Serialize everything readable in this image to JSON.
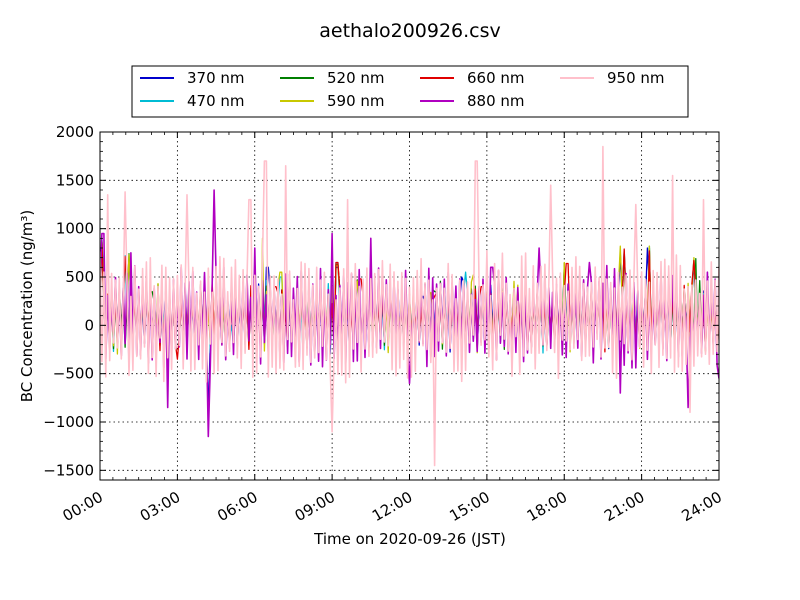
{
  "chart_data": {
    "type": "line",
    "title": "aethalo200926.csv",
    "xlabel": "Time on 2020-09-26 (JST)",
    "ylabel": "BC Concentration (ng/m³)",
    "xlim": [
      0,
      24
    ],
    "ylim": [
      -1600,
      2000
    ],
    "x_unit": "hours",
    "x_ticks": [
      0,
      3,
      6,
      9,
      12,
      15,
      18,
      21,
      24
    ],
    "x_tick_labels": [
      "00:00",
      "03:00",
      "06:00",
      "09:00",
      "12:00",
      "15:00",
      "18:00",
      "21:00",
      "24:00"
    ],
    "y_ticks": [
      -1500,
      -1000,
      -500,
      0,
      500,
      1000,
      1500,
      2000
    ],
    "y_tick_labels": [
      "−1500",
      "−1000",
      "−500",
      "0",
      "500",
      "1000",
      "1500",
      "2000"
    ],
    "grid": true,
    "legend_position": "top",
    "series": [
      {
        "name": "370 nm",
        "color": "#0000cc",
        "peaks": [
          [
            0.05,
            850
          ],
          [
            1.0,
            700
          ],
          [
            4.2,
            -900
          ],
          [
            6.5,
            600
          ],
          [
            9.2,
            600
          ],
          [
            10.0,
            450
          ],
          [
            12.5,
            300
          ],
          [
            14.0,
            500
          ],
          [
            18.0,
            600
          ],
          [
            20.2,
            750
          ],
          [
            21.2,
            800
          ],
          [
            23.0,
            650
          ],
          [
            24.0,
            200
          ]
        ]
      },
      {
        "name": "470 nm",
        "color": "#00bcd4",
        "peaks": [
          [
            0.05,
            900
          ],
          [
            1.0,
            720
          ],
          [
            5.1,
            0
          ],
          [
            7.0,
            500
          ],
          [
            9.2,
            650
          ],
          [
            10.5,
            400
          ],
          [
            12.6,
            320
          ],
          [
            14.2,
            550
          ],
          [
            18.0,
            620
          ],
          [
            20.3,
            780
          ],
          [
            21.3,
            820
          ],
          [
            23.0,
            680
          ],
          [
            24.0,
            220
          ]
        ]
      },
      {
        "name": "520 nm",
        "color": "#007f00",
        "peaks": [
          [
            0.05,
            880
          ],
          [
            1.1,
            740
          ],
          [
            2.0,
            350
          ],
          [
            6.0,
            650
          ],
          [
            9.2,
            630
          ],
          [
            10.0,
            470
          ],
          [
            13.0,
            350
          ],
          [
            15.0,
            450
          ],
          [
            18.0,
            640
          ],
          [
            20.3,
            760
          ],
          [
            21.3,
            800
          ],
          [
            23.1,
            690
          ],
          [
            24.0,
            200
          ]
        ]
      },
      {
        "name": "590 nm",
        "color": "#c8c800",
        "peaks": [
          [
            0.05,
            870
          ],
          [
            1.1,
            730
          ],
          [
            6.3,
            900
          ],
          [
            7.0,
            550
          ],
          [
            9.2,
            620
          ],
          [
            10.0,
            460
          ],
          [
            12.8,
            340
          ],
          [
            14.5,
            520
          ],
          [
            18.0,
            650
          ],
          [
            20.2,
            820
          ],
          [
            21.3,
            820
          ],
          [
            23.0,
            700
          ],
          [
            24.0,
            210
          ]
        ]
      },
      {
        "name": "660 nm",
        "color": "#e00000",
        "peaks": [
          [
            0.05,
            860
          ],
          [
            1.0,
            710
          ],
          [
            3.0,
            -350
          ],
          [
            6.8,
            400
          ],
          [
            9.2,
            650
          ],
          [
            10.1,
            480
          ],
          [
            13.0,
            300
          ],
          [
            14.8,
            400
          ],
          [
            18.1,
            640
          ],
          [
            20.3,
            790
          ],
          [
            21.3,
            770
          ],
          [
            23.0,
            670
          ],
          [
            24.0,
            190
          ]
        ]
      },
      {
        "name": "880 nm",
        "color": "#b000c0",
        "peaks": [
          [
            0.1,
            950
          ],
          [
            1.2,
            750
          ],
          [
            2.6,
            -850
          ],
          [
            4.2,
            -1150
          ],
          [
            4.4,
            1400
          ],
          [
            6.0,
            800
          ],
          [
            9.0,
            950
          ],
          [
            10.5,
            900
          ],
          [
            12.0,
            -600
          ],
          [
            13.5,
            550
          ],
          [
            15.2,
            600
          ],
          [
            17.0,
            800
          ],
          [
            19.0,
            650
          ],
          [
            20.2,
            -700
          ],
          [
            22.8,
            -850
          ],
          [
            24.0,
            -550
          ]
        ]
      },
      {
        "name": "950 nm",
        "color": "#ffc0cb",
        "peaks": [
          [
            0.3,
            1350
          ],
          [
            1.0,
            1380
          ],
          [
            3.4,
            1350
          ],
          [
            5.8,
            1300
          ],
          [
            6.4,
            1700
          ],
          [
            7.2,
            1650
          ],
          [
            9.0,
            -1100
          ],
          [
            9.6,
            1300
          ],
          [
            13.0,
            -1450
          ],
          [
            14.6,
            1700
          ],
          [
            17.5,
            1450
          ],
          [
            19.5,
            1850
          ],
          [
            20.8,
            1250
          ],
          [
            22.2,
            1550
          ],
          [
            22.9,
            -900
          ],
          [
            23.4,
            1300
          ]
        ]
      }
    ]
  }
}
